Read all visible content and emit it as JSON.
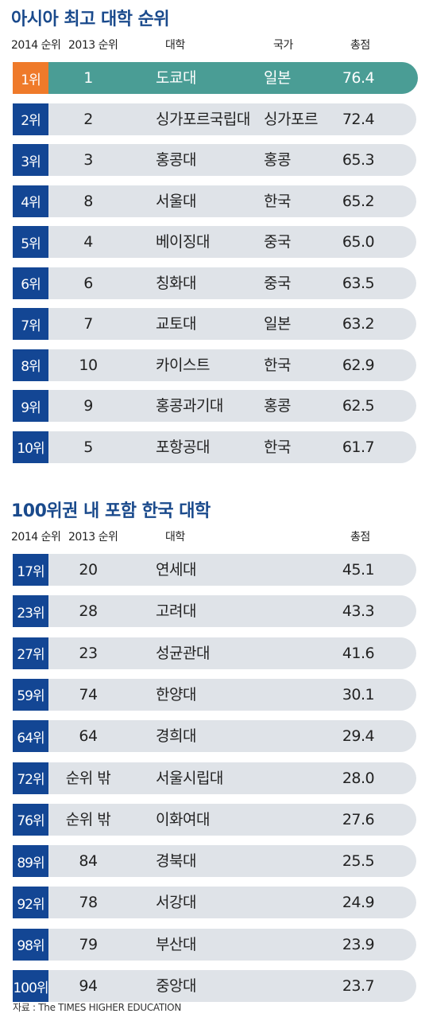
{
  "chart_data": [
    {
      "type": "table",
      "title": "아시아 최고 대학 순위",
      "columns": [
        "2014 순위",
        "2013 순위",
        "대학",
        "국가",
        "총점"
      ],
      "rows": [
        {
          "rank2014": "1위",
          "rank2013": "1",
          "university": "도쿄대",
          "country": "일본",
          "score": "76.4"
        },
        {
          "rank2014": "2위",
          "rank2013": "2",
          "university": "싱가포르국립대",
          "country": "싱가포르",
          "score": "72.4"
        },
        {
          "rank2014": "3위",
          "rank2013": "3",
          "university": "홍콩대",
          "country": "홍콩",
          "score": "65.3"
        },
        {
          "rank2014": "4위",
          "rank2013": "8",
          "university": "서울대",
          "country": "한국",
          "score": "65.2"
        },
        {
          "rank2014": "5위",
          "rank2013": "4",
          "university": "베이징대",
          "country": "중국",
          "score": "65.0"
        },
        {
          "rank2014": "6위",
          "rank2013": "6",
          "university": "칭화대",
          "country": "중국",
          "score": "63.5"
        },
        {
          "rank2014": "7위",
          "rank2013": "7",
          "university": "교토대",
          "country": "일본",
          "score": "63.2"
        },
        {
          "rank2014": "8위",
          "rank2013": "10",
          "university": "카이스트",
          "country": "한국",
          "score": "62.9"
        },
        {
          "rank2014": "9위",
          "rank2013": "9",
          "university": "홍콩과기대",
          "country": "홍콩",
          "score": "62.5"
        },
        {
          "rank2014": "10위",
          "rank2013": "5",
          "university": "포항공대",
          "country": "한국",
          "score": "61.7"
        }
      ]
    },
    {
      "type": "table",
      "title": "100위권 내 포함 한국 대학",
      "columns": [
        "2014 순위",
        "2013 순위",
        "대학",
        "총점"
      ],
      "rows": [
        {
          "rank2014": "17위",
          "rank2013": "20",
          "university": "연세대",
          "score": "45.1"
        },
        {
          "rank2014": "23위",
          "rank2013": "28",
          "university": "고려대",
          "score": "43.3"
        },
        {
          "rank2014": "27위",
          "rank2013": "23",
          "university": "성균관대",
          "score": "41.6"
        },
        {
          "rank2014": "59위",
          "rank2013": "74",
          "university": "한양대",
          "score": "30.1"
        },
        {
          "rank2014": "64위",
          "rank2013": "64",
          "university": "경희대",
          "score": "29.4"
        },
        {
          "rank2014": "72위",
          "rank2013": "순위 밖",
          "university": "서울시립대",
          "score": "28.0"
        },
        {
          "rank2014": "76위",
          "rank2013": "순위 밖",
          "university": "이화여대",
          "score": "27.6"
        },
        {
          "rank2014": "89위",
          "rank2013": "84",
          "university": "경북대",
          "score": "25.5"
        },
        {
          "rank2014": "92위",
          "rank2013": "78",
          "university": "서강대",
          "score": "24.9"
        },
        {
          "rank2014": "98위",
          "rank2013": "79",
          "university": "부산대",
          "score": "23.9"
        },
        {
          "rank2014": "100위",
          "rank2013": "94",
          "university": "중앙대",
          "score": "23.7"
        }
      ]
    }
  ],
  "source": "자료 : The TIMES HIGHER EDUCATION",
  "colors": {
    "title": "#1a4a8c",
    "rank_box": "#134694",
    "row_bg": "#dfe3e8",
    "top_row_bg": "#4a9d95",
    "top_rank_box": "#ef7a2a"
  }
}
